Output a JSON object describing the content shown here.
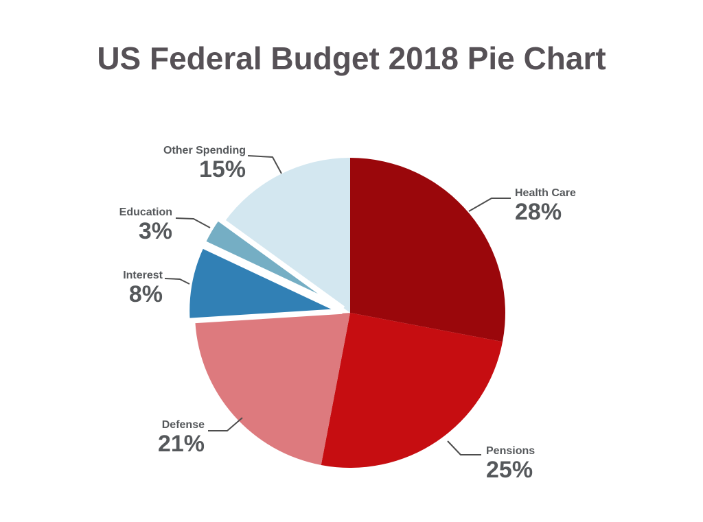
{
  "page": {
    "background": "#ffffff"
  },
  "chart_data": {
    "type": "pie",
    "title": "US Federal Budget 2018 Pie Chart",
    "unit": "%",
    "start_angle_deg": 0,
    "direction": "clockwise",
    "legend": "none",
    "title_color": "#565156",
    "label_color": "#55585B",
    "leader_line_color": "#4D4D4D",
    "slices": [
      {
        "label": "Health Care",
        "value": 28,
        "pct_label": "28%",
        "color": "#9A070B",
        "exploded": false
      },
      {
        "label": "Pensions",
        "value": 25,
        "pct_label": "25%",
        "color": "#C60D11",
        "exploded": false
      },
      {
        "label": "Defense",
        "value": 21,
        "pct_label": "21%",
        "color": "#DD7A7E",
        "exploded": false
      },
      {
        "label": "Interest",
        "value": 8,
        "pct_label": "8%",
        "color": "#3180B5",
        "exploded": true
      },
      {
        "label": "Education",
        "value": 3,
        "pct_label": "3%",
        "color": "#75AEC4",
        "exploded": true
      },
      {
        "label": "Other Spending",
        "value": 15,
        "pct_label": "15%",
        "color": "#D3E7F0",
        "exploded": false
      }
    ]
  }
}
